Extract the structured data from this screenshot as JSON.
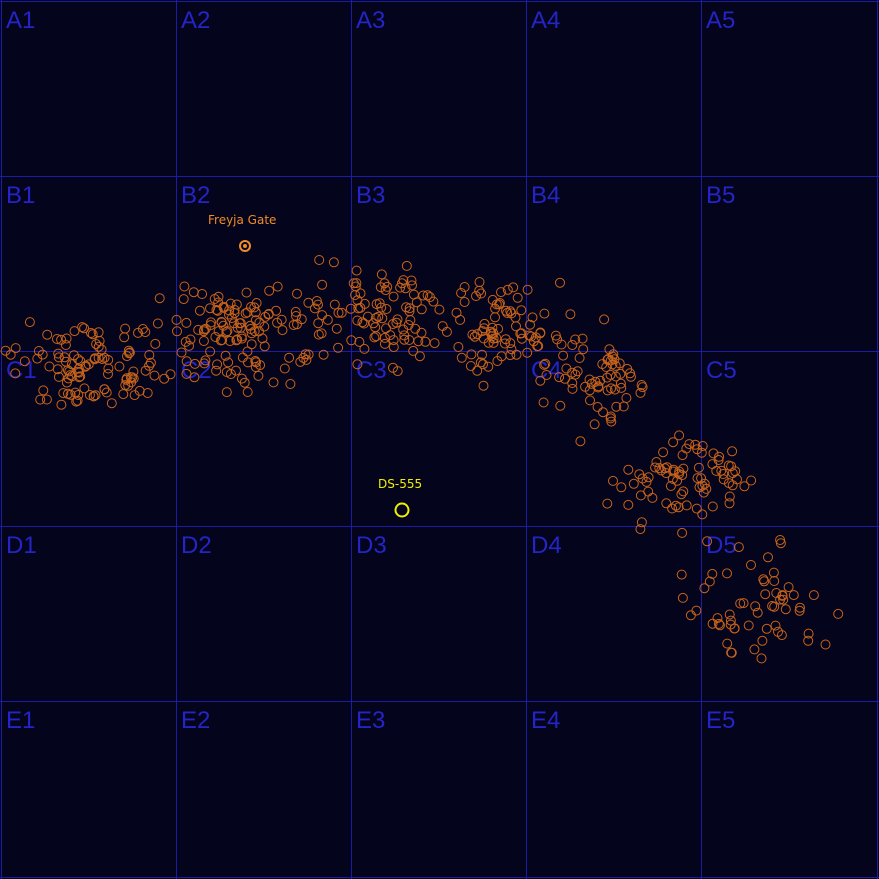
{
  "map": {
    "background_color": "#04041c",
    "grid_color": "#1c1ca8",
    "label_color": "#2424c8",
    "star_color": "#c8641a",
    "rows": [
      "A",
      "B",
      "C",
      "D",
      "E"
    ],
    "columns": [
      "1",
      "2",
      "3",
      "4",
      "5"
    ],
    "cells": [
      "A1",
      "A2",
      "A3",
      "A4",
      "A5",
      "B1",
      "B2",
      "B3",
      "B4",
      "B5",
      "C1",
      "C2",
      "C3",
      "C4",
      "C5",
      "D1",
      "D2",
      "D3",
      "D4",
      "D5",
      "E1",
      "E2",
      "E3",
      "E4",
      "E5"
    ]
  },
  "points_of_interest": [
    {
      "name": "Freyja Gate",
      "color": "#f08c28",
      "icon": "gate-marker-icon"
    },
    {
      "name": "DS-555",
      "color": "#f0f000",
      "icon": "current-system-marker-icon"
    }
  ]
}
